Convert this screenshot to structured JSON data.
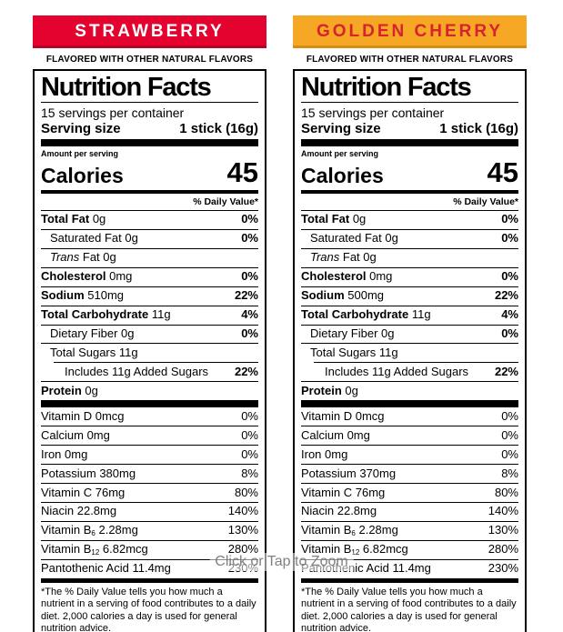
{
  "overlay": {
    "zoom_hint": "Click or Tap to Zoom"
  },
  "labels": [
    {
      "flavor": "STRAWBERRY",
      "banner_bg": "#e4032e",
      "banner_edge": "#b80226",
      "banner_fg": "#ffffff",
      "tagline": "FLAVORED WITH OTHER NATURAL FLAVORS",
      "title": "Nutrition Facts",
      "servings_line": "15 servings per container",
      "serving_size_label": "Serving size",
      "serving_size_value": "1 stick (16g)",
      "amount_per_serving": "Amount per serving",
      "calories_label": "Calories",
      "calories_value": "45",
      "daily_value_header": "% Daily Value*",
      "main_rows": [
        {
          "name": "Total Fat",
          "amount": "0g",
          "dv": "0%",
          "bold": true,
          "indent": 0
        },
        {
          "name": "Saturated Fat",
          "amount": "0g",
          "dv": "0%",
          "indent": 1
        },
        {
          "italic": "Trans",
          "name": "Fat",
          "amount": "0g",
          "dv": "",
          "indent": 1
        },
        {
          "name": "Cholesterol",
          "amount": "0mg",
          "dv": "0%",
          "bold": true,
          "indent": 0
        },
        {
          "name": "Sodium",
          "amount": "510mg",
          "dv": "22%",
          "bold": true,
          "indent": 0
        },
        {
          "name": "Total Carbohydrate",
          "amount": "11g",
          "dv": "4%",
          "bold": true,
          "indent": 0
        },
        {
          "name": "Dietary Fiber",
          "amount": "0g",
          "dv": "0%",
          "indent": 1
        },
        {
          "name": "Total Sugars",
          "amount": "11g",
          "dv": "",
          "indent": 1
        },
        {
          "name": "Includes 11g Added Sugars",
          "amount": "",
          "dv": "22%",
          "indent": 2,
          "inset": true
        },
        {
          "name": "Protein",
          "amount": "0g",
          "dv": "",
          "bold": true,
          "indent": 0
        }
      ],
      "vitamin_rows": [
        {
          "name": "Vitamin D",
          "amount": "0mcg",
          "dv": "0%"
        },
        {
          "name": "Calcium",
          "amount": "0mg",
          "dv": "0%"
        },
        {
          "name": "Iron",
          "amount": "0mg",
          "dv": "0%"
        },
        {
          "name": "Potassium",
          "amount": "380mg",
          "dv": "8%"
        },
        {
          "name": "Vitamin C",
          "amount": "76mg",
          "dv": "80%"
        },
        {
          "name": "Niacin",
          "amount": "22.8mg",
          "dv": "140%"
        },
        {
          "name": "Vitamin B",
          "sub": "6",
          "amount": "2.28mg",
          "dv": "130%"
        },
        {
          "name": "Vitamin B",
          "sub": "12",
          "amount": "6.82mcg",
          "dv": "280%"
        },
        {
          "name": "Pantothenic Acid",
          "amount": "11.4mg",
          "dv": "230%"
        }
      ],
      "footnote": "*The % Daily Value tells you how much a nutrient in a serving of food contributes to a daily diet. 2,000 calories a day is used for general nutrition advice."
    },
    {
      "flavor": "GOLDEN CHERRY",
      "banner_bg": "#f6a723",
      "banner_edge": "#d88d12",
      "banner_fg": "#d6232e",
      "tagline": "FLAVORED WITH OTHER NATURAL FLAVORS",
      "title": "Nutrition Facts",
      "servings_line": "15 servings per container",
      "serving_size_label": "Serving size",
      "serving_size_value": "1 stick (16g)",
      "amount_per_serving": "Amount per serving",
      "calories_label": "Calories",
      "calories_value": "45",
      "daily_value_header": "% Daily Value*",
      "main_rows": [
        {
          "name": "Total Fat",
          "amount": "0g",
          "dv": "0%",
          "bold": true,
          "indent": 0
        },
        {
          "name": "Saturated Fat",
          "amount": "0g",
          "dv": "0%",
          "indent": 1
        },
        {
          "italic": "Trans",
          "name": "Fat",
          "amount": "0g",
          "dv": "",
          "indent": 1
        },
        {
          "name": "Cholesterol",
          "amount": "0mg",
          "dv": "0%",
          "bold": true,
          "indent": 0
        },
        {
          "name": "Sodium",
          "amount": "500mg",
          "dv": "22%",
          "bold": true,
          "indent": 0
        },
        {
          "name": "Total Carbohydrate",
          "amount": "11g",
          "dv": "4%",
          "bold": true,
          "indent": 0
        },
        {
          "name": "Dietary Fiber",
          "amount": "0g",
          "dv": "0%",
          "indent": 1
        },
        {
          "name": "Total Sugars",
          "amount": "11g",
          "dv": "",
          "indent": 1
        },
        {
          "name": "Includes 11g Added Sugars",
          "amount": "",
          "dv": "22%",
          "indent": 2,
          "inset": true
        },
        {
          "name": "Protein",
          "amount": "0g",
          "dv": "",
          "bold": true,
          "indent": 0
        }
      ],
      "vitamin_rows": [
        {
          "name": "Vitamin D",
          "amount": "0mcg",
          "dv": "0%"
        },
        {
          "name": "Calcium",
          "amount": "0mg",
          "dv": "0%"
        },
        {
          "name": "Iron",
          "amount": "0mg",
          "dv": "0%"
        },
        {
          "name": "Potassium",
          "amount": "370mg",
          "dv": "8%"
        },
        {
          "name": "Vitamin C",
          "amount": "76mg",
          "dv": "80%"
        },
        {
          "name": "Niacin",
          "amount": "22.8mg",
          "dv": "140%"
        },
        {
          "name": "Vitamin B",
          "sub": "6",
          "amount": "2.28mg",
          "dv": "130%"
        },
        {
          "name": "Vitamin B",
          "sub": "12",
          "amount": "6.82mcg",
          "dv": "280%"
        },
        {
          "name": "Pantothenic Acid",
          "amount": "11.4mg",
          "dv": "230%"
        }
      ],
      "footnote": "*The % Daily Value tells you how much a nutrient in a serving of food contributes to a daily diet. 2,000 calories a day is used for general nutrition advice."
    }
  ]
}
